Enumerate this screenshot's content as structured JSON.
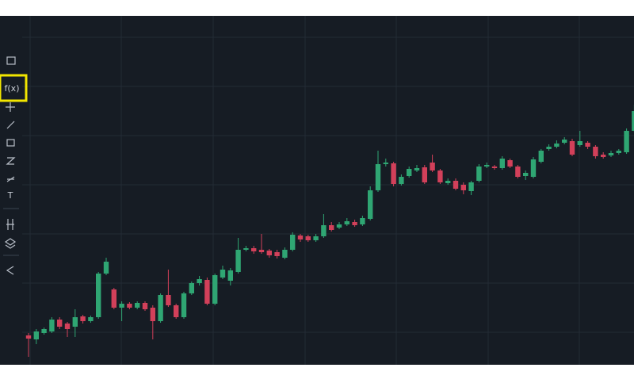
{
  "toolbar": {
    "function_button": "f(x)",
    "text_tool": "T"
  },
  "chart_data": {
    "type": "candlestick",
    "up_color": "#2fa673",
    "down_color": "#d2405a",
    "open": [
      37,
      32,
      40,
      42,
      57,
      52,
      48,
      61,
      55,
      60,
      115,
      95,
      72,
      77,
      72,
      78,
      72,
      55,
      88,
      75,
      60,
      90,
      103,
      107,
      77,
      110,
      106,
      117,
      145,
      147,
      145,
      144,
      142,
      135,
      145,
      163,
      162,
      157,
      162,
      176,
      173,
      177,
      180,
      177,
      184,
      220,
      253,
      254,
      228,
      238,
      245,
      249,
      255,
      245,
      229,
      232,
      227,
      219,
      232,
      250,
      250,
      248,
      258,
      250,
      238,
      237,
      256,
      272,
      275,
      280,
      282,
      277,
      280,
      275,
      265,
      264,
      267,
      268,
      295,
      318
    ],
    "close": [
      33,
      42,
      45,
      57,
      48,
      45,
      60,
      55,
      60,
      115,
      130,
      72,
      77,
      72,
      78,
      70,
      55,
      88,
      75,
      60,
      90,
      103,
      108,
      77,
      113,
      120,
      119,
      145,
      147,
      143,
      142,
      138,
      137,
      145,
      164,
      158,
      157,
      162,
      176,
      170,
      177,
      181,
      176,
      185,
      220,
      253,
      255,
      228,
      237,
      247,
      248,
      230,
      245,
      230,
      232,
      222,
      220,
      230,
      250,
      252,
      248,
      260,
      250,
      237,
      242,
      259,
      270,
      275,
      279,
      284,
      265,
      282,
      275,
      263,
      262,
      267,
      270,
      295,
      320,
      315
    ],
    "high": [
      40,
      45,
      47,
      60,
      60,
      54,
      70,
      63,
      62,
      117,
      135,
      97,
      80,
      79,
      80,
      80,
      75,
      90,
      120,
      77,
      92,
      105,
      112,
      110,
      115,
      125,
      122,
      160,
      150,
      150,
      165,
      146,
      145,
      148,
      167,
      165,
      164,
      165,
      190,
      180,
      180,
      185,
      183,
      188,
      225,
      270,
      260,
      256,
      240,
      250,
      252,
      252,
      265,
      247,
      235,
      235,
      230,
      232,
      253,
      255,
      252,
      263,
      260,
      252,
      245,
      262,
      272,
      278,
      283,
      287,
      285,
      295,
      282,
      277,
      268,
      270,
      272,
      298,
      328,
      320
    ],
    "low": [
      10,
      26,
      38,
      40,
      45,
      35,
      35,
      52,
      53,
      58,
      113,
      70,
      55,
      70,
      70,
      68,
      32,
      53,
      73,
      58,
      58,
      88,
      100,
      75,
      75,
      108,
      100,
      115,
      143,
      140,
      140,
      135,
      134,
      133,
      143,
      155,
      155,
      155,
      160,
      168,
      171,
      175,
      174,
      175,
      182,
      218,
      250,
      225,
      226,
      236,
      243,
      228,
      243,
      228,
      227,
      220,
      215,
      214,
      230,
      248,
      246,
      246,
      248,
      235,
      233,
      235,
      254,
      270,
      273,
      278,
      263,
      275,
      272,
      260,
      260,
      262,
      265,
      266,
      293,
      313
    ]
  }
}
